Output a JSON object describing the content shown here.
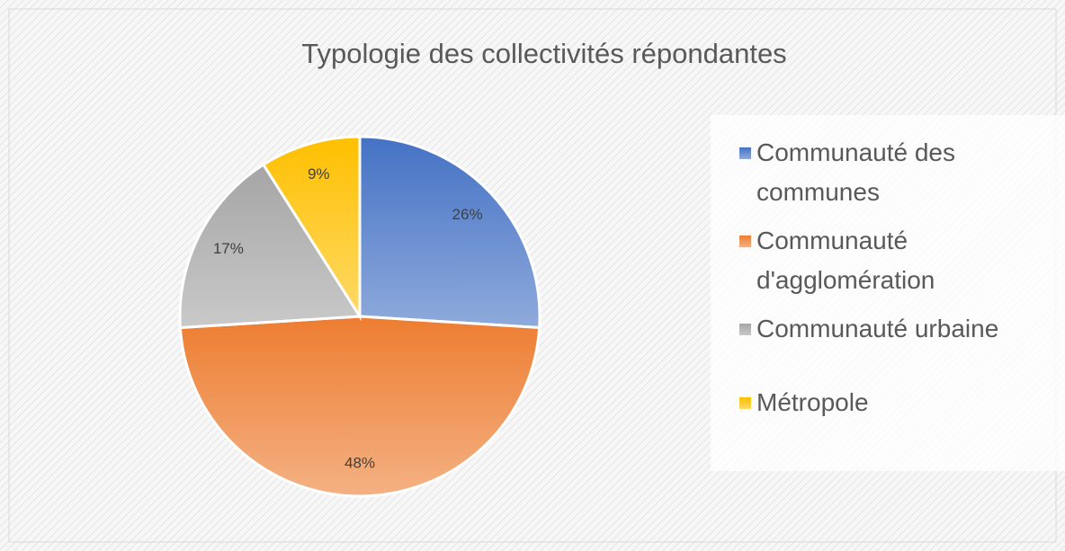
{
  "chart_data": {
    "type": "pie",
    "title": "Typologie des collectivités répondantes",
    "categories": [
      "Communauté des communes",
      "Communauté d'agglomération",
      "Communauté urbaine",
      "Métropole"
    ],
    "values": [
      26,
      48,
      17,
      9
    ],
    "value_labels": [
      "26%",
      "48%",
      "17%",
      "9%"
    ],
    "colors": [
      "#4472c4",
      "#ed7d31",
      "#a5a5a5",
      "#ffc000"
    ],
    "legend": "right"
  }
}
